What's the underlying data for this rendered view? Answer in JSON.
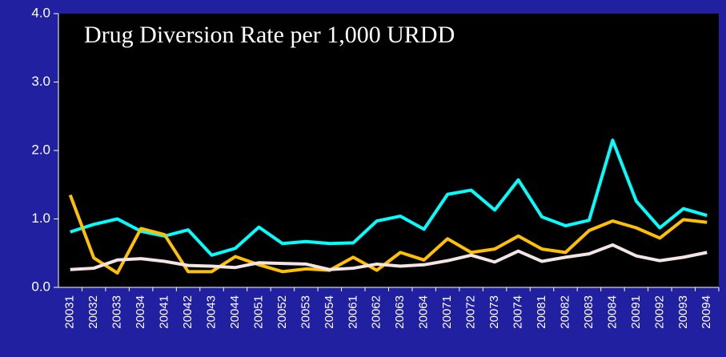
{
  "chart_data": {
    "type": "line",
    "title": "Drug Diversion Rate per 1,000 URDD",
    "categories": [
      "20031",
      "20032",
      "20033",
      "20034",
      "20041",
      "20042",
      "20043",
      "20044",
      "20051",
      "20052",
      "20053",
      "20054",
      "20061",
      "20062",
      "20063",
      "20064",
      "20071",
      "20072",
      "20073",
      "20074",
      "20081",
      "20082",
      "20083",
      "20084",
      "20091",
      "20092",
      "20093",
      "20094"
    ],
    "series": [
      {
        "color": "#00ffff",
        "values": [
          0.81,
          0.92,
          1.0,
          0.82,
          0.75,
          0.84,
          0.47,
          0.57,
          0.88,
          0.64,
          0.67,
          0.64,
          0.65,
          0.97,
          1.04,
          0.85,
          1.36,
          1.42,
          1.13,
          1.57,
          1.03,
          0.9,
          0.98,
          2.15,
          1.26,
          0.87,
          1.15,
          1.05
        ]
      },
      {
        "color": "#ffc000",
        "values": [
          1.35,
          0.43,
          0.21,
          0.86,
          0.77,
          0.23,
          0.23,
          0.45,
          0.33,
          0.23,
          0.27,
          0.25,
          0.44,
          0.25,
          0.51,
          0.4,
          0.71,
          0.51,
          0.56,
          0.75,
          0.56,
          0.51,
          0.83,
          0.97,
          0.87,
          0.72,
          0.99,
          0.95
        ]
      },
      {
        "color": "#f5e4e4",
        "values": [
          0.26,
          0.28,
          0.4,
          0.42,
          0.38,
          0.32,
          0.31,
          0.29,
          0.36,
          0.35,
          0.34,
          0.26,
          0.28,
          0.34,
          0.31,
          0.33,
          0.39,
          0.47,
          0.37,
          0.53,
          0.38,
          0.44,
          0.49,
          0.62,
          0.46,
          0.39,
          0.44,
          0.51
        ]
      }
    ],
    "ylim": [
      0,
      4
    ],
    "yticks": [
      {
        "value": 0,
        "label": "0.0"
      },
      {
        "value": 1,
        "label": "1.0"
      },
      {
        "value": 2,
        "label": "2.0"
      },
      {
        "value": 3,
        "label": "3.0"
      },
      {
        "value": 4,
        "label": "4.0"
      }
    ]
  }
}
